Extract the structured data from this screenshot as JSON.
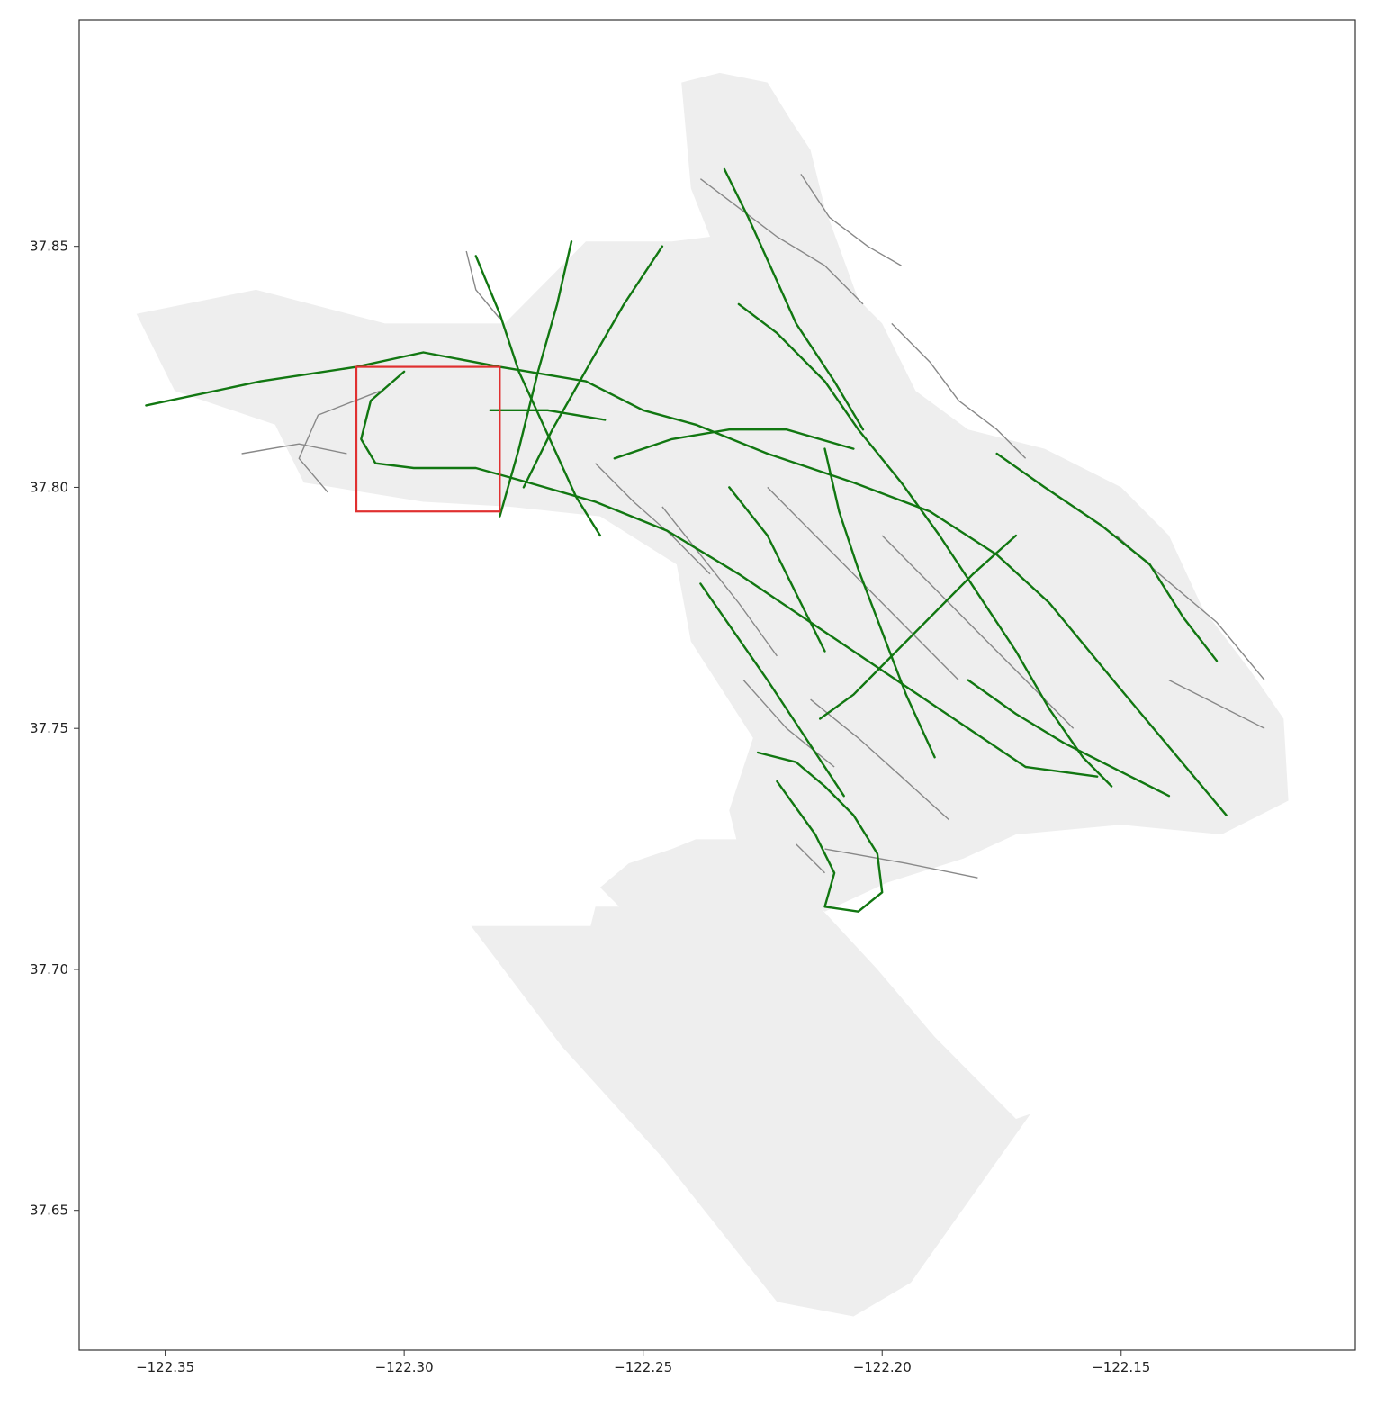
{
  "colors": {
    "background": "#ffffff",
    "land": "#eeeeee",
    "minor_roads": "#888888",
    "major_roads": "#117711",
    "highlight_box": "#e03030",
    "axes": "#333333"
  },
  "chart_data": {
    "type": "map",
    "title": "",
    "xlabel": "",
    "ylabel": "",
    "xlim": [
      -122.368,
      -122.101
    ],
    "ylim": [
      37.621,
      37.897
    ],
    "grid": false,
    "x_ticks": [
      {
        "value": -122.35,
        "label": "−122.35"
      },
      {
        "value": -122.3,
        "label": "−122.30"
      },
      {
        "value": -122.25,
        "label": "−122.25"
      },
      {
        "value": -122.2,
        "label": "−122.20"
      },
      {
        "value": -122.15,
        "label": "−122.15"
      }
    ],
    "y_ticks": [
      {
        "value": 37.65,
        "label": "37.65"
      },
      {
        "value": 37.7,
        "label": "37.70"
      },
      {
        "value": 37.75,
        "label": "37.75"
      },
      {
        "value": 37.8,
        "label": "37.80"
      },
      {
        "value": 37.85,
        "label": "37.85"
      }
    ],
    "highlight_box": {
      "lon": [
        -122.31,
        -122.28
      ],
      "lat": [
        37.795,
        37.825
      ]
    },
    "land_polygon": [
      [
        -122.356,
        37.836
      ],
      [
        -122.331,
        37.841
      ],
      [
        -122.304,
        37.834
      ],
      [
        -122.279,
        37.834
      ],
      [
        -122.262,
        37.851
      ],
      [
        -122.244,
        37.851
      ],
      [
        -122.236,
        37.852
      ],
      [
        -122.24,
        37.862
      ],
      [
        -122.242,
        37.884
      ],
      [
        -122.234,
        37.886
      ],
      [
        -122.224,
        37.884
      ],
      [
        -122.219,
        37.876
      ],
      [
        -122.215,
        37.87
      ],
      [
        -122.212,
        37.858
      ],
      [
        -122.205,
        37.839
      ],
      [
        -122.2,
        37.834
      ],
      [
        -122.193,
        37.82
      ],
      [
        -122.182,
        37.812
      ],
      [
        -122.166,
        37.808
      ],
      [
        -122.15,
        37.8
      ],
      [
        -122.14,
        37.79
      ],
      [
        -122.133,
        37.775
      ],
      [
        -122.123,
        37.762
      ],
      [
        -122.116,
        37.752
      ],
      [
        -122.115,
        37.735
      ],
      [
        -122.129,
        37.728
      ],
      [
        -122.15,
        37.73
      ],
      [
        -122.172,
        37.728
      ],
      [
        -122.183,
        37.723
      ],
      [
        -122.199,
        37.718
      ],
      [
        -122.212,
        37.712
      ],
      [
        -122.222,
        37.72
      ],
      [
        -122.23,
        37.725
      ],
      [
        -122.232,
        37.733
      ],
      [
        -122.227,
        37.748
      ],
      [
        -122.24,
        37.768
      ],
      [
        -122.243,
        37.784
      ],
      [
        -122.259,
        37.794
      ],
      [
        -122.278,
        37.796
      ],
      [
        -122.296,
        37.797
      ],
      [
        -122.321,
        37.801
      ],
      [
        -122.327,
        37.813
      ],
      [
        -122.348,
        37.82
      ]
    ],
    "land_polygon_south": [
      [
        -122.228,
        37.727
      ],
      [
        -122.215,
        37.715
      ],
      [
        -122.201,
        37.7
      ],
      [
        -122.189,
        37.686
      ],
      [
        -122.18,
        37.677
      ],
      [
        -122.172,
        37.669
      ],
      [
        -122.169,
        37.67
      ],
      [
        -122.194,
        37.635
      ],
      [
        -122.206,
        37.628
      ],
      [
        -122.222,
        37.631
      ],
      [
        -122.246,
        37.661
      ],
      [
        -122.267,
        37.684
      ],
      [
        -122.286,
        37.709
      ],
      [
        -122.261,
        37.709
      ],
      [
        -122.26,
        37.713
      ],
      [
        -122.255,
        37.713
      ],
      [
        -122.259,
        37.717
      ],
      [
        -122.253,
        37.722
      ],
      [
        -122.244,
        37.725
      ],
      [
        -122.239,
        37.727
      ]
    ],
    "major_roads": [
      {
        "name": "",
        "points": [
          [
            -122.354,
            37.817
          ],
          [
            -122.33,
            37.822
          ],
          [
            -122.31,
            37.825
          ],
          [
            -122.296,
            37.828
          ],
          [
            -122.28,
            37.825
          ],
          [
            -122.262,
            37.822
          ],
          [
            -122.25,
            37.816
          ],
          [
            -122.239,
            37.813
          ],
          [
            -122.224,
            37.807
          ],
          [
            -122.206,
            37.801
          ],
          [
            -122.19,
            37.795
          ],
          [
            -122.176,
            37.786
          ],
          [
            -122.165,
            37.776
          ],
          [
            -122.15,
            37.758
          ],
          [
            -122.139,
            37.745
          ],
          [
            -122.128,
            37.732
          ]
        ]
      },
      {
        "name": "",
        "points": [
          [
            -122.3,
            37.824
          ],
          [
            -122.307,
            37.818
          ],
          [
            -122.309,
            37.81
          ],
          [
            -122.306,
            37.805
          ],
          [
            -122.298,
            37.804
          ],
          [
            -122.285,
            37.804
          ],
          [
            -122.274,
            37.801
          ],
          [
            -122.26,
            37.797
          ],
          [
            -122.245,
            37.791
          ],
          [
            -122.23,
            37.782
          ],
          [
            -122.215,
            37.772
          ],
          [
            -122.2,
            37.762
          ],
          [
            -122.185,
            37.752
          ],
          [
            -122.17,
            37.742
          ],
          [
            -122.155,
            37.74
          ]
        ]
      },
      {
        "name": "",
        "points": [
          [
            -122.23,
            37.838
          ],
          [
            -122.222,
            37.832
          ],
          [
            -122.212,
            37.822
          ],
          [
            -122.205,
            37.812
          ],
          [
            -122.196,
            37.801
          ],
          [
            -122.188,
            37.79
          ],
          [
            -122.18,
            37.778
          ],
          [
            -122.172,
            37.766
          ],
          [
            -122.165,
            37.754
          ],
          [
            -122.158,
            37.744
          ],
          [
            -122.152,
            37.738
          ]
        ]
      },
      {
        "name": "",
        "points": [
          [
            -122.226,
            37.745
          ],
          [
            -122.218,
            37.743
          ],
          [
            -122.212,
            37.738
          ],
          [
            -122.206,
            37.732
          ],
          [
            -122.201,
            37.724
          ],
          [
            -122.2,
            37.716
          ],
          [
            -122.205,
            37.712
          ],
          [
            -122.212,
            37.713
          ],
          [
            -122.21,
            37.72
          ],
          [
            -122.214,
            37.728
          ],
          [
            -122.222,
            37.739
          ]
        ]
      },
      {
        "name": "",
        "points": [
          [
            -122.233,
            37.866
          ],
          [
            -122.228,
            37.856
          ],
          [
            -122.223,
            37.845
          ],
          [
            -122.218,
            37.834
          ],
          [
            -122.21,
            37.822
          ],
          [
            -122.204,
            37.812
          ]
        ]
      },
      {
        "name": "",
        "points": [
          [
            -122.285,
            37.848
          ],
          [
            -122.28,
            37.836
          ],
          [
            -122.276,
            37.824
          ],
          [
            -122.27,
            37.811
          ],
          [
            -122.264,
            37.798
          ],
          [
            -122.259,
            37.79
          ]
        ]
      },
      {
        "name": "",
        "points": [
          [
            -122.265,
            37.851
          ],
          [
            -122.268,
            37.838
          ],
          [
            -122.272,
            37.824
          ],
          [
            -122.276,
            37.808
          ],
          [
            -122.28,
            37.794
          ]
        ]
      },
      {
        "name": "",
        "points": [
          [
            -122.246,
            37.85
          ],
          [
            -122.254,
            37.838
          ],
          [
            -122.261,
            37.826
          ],
          [
            -122.269,
            37.812
          ],
          [
            -122.275,
            37.8
          ]
        ]
      },
      {
        "name": "",
        "points": [
          [
            -122.238,
            37.78
          ],
          [
            -122.231,
            37.77
          ],
          [
            -122.224,
            37.76
          ],
          [
            -122.216,
            37.748
          ],
          [
            -122.208,
            37.736
          ]
        ]
      },
      {
        "name": "",
        "points": [
          [
            -122.256,
            37.806
          ],
          [
            -122.244,
            37.81
          ],
          [
            -122.232,
            37.812
          ],
          [
            -122.22,
            37.812
          ],
          [
            -122.206,
            37.808
          ]
        ]
      },
      {
        "name": "",
        "points": [
          [
            -122.212,
            37.808
          ],
          [
            -122.209,
            37.795
          ],
          [
            -122.205,
            37.783
          ],
          [
            -122.2,
            37.77
          ],
          [
            -122.195,
            37.757
          ],
          [
            -122.189,
            37.744
          ]
        ]
      },
      {
        "name": "",
        "points": [
          [
            -122.172,
            37.79
          ],
          [
            -122.181,
            37.782
          ],
          [
            -122.19,
            37.773
          ],
          [
            -122.198,
            37.765
          ],
          [
            -122.206,
            37.757
          ],
          [
            -122.213,
            37.752
          ]
        ]
      },
      {
        "name": "",
        "points": [
          [
            -122.182,
            37.76
          ],
          [
            -122.172,
            37.753
          ],
          [
            -122.162,
            37.747
          ],
          [
            -122.15,
            37.741
          ],
          [
            -122.14,
            37.736
          ]
        ]
      },
      {
        "name": "",
        "points": [
          [
            -122.176,
            37.807
          ],
          [
            -122.166,
            37.8
          ],
          [
            -122.154,
            37.792
          ],
          [
            -122.144,
            37.784
          ],
          [
            -122.137,
            37.773
          ],
          [
            -122.13,
            37.764
          ]
        ]
      },
      {
        "name": "",
        "points": [
          [
            -122.282,
            37.816
          ],
          [
            -122.27,
            37.816
          ],
          [
            -122.258,
            37.814
          ]
        ]
      },
      {
        "name": "",
        "points": [
          [
            -122.232,
            37.8
          ],
          [
            -122.224,
            37.79
          ],
          [
            -122.218,
            37.778
          ],
          [
            -122.212,
            37.766
          ]
        ]
      }
    ],
    "minor_roads": [
      {
        "name": "",
        "points": [
          [
            -122.334,
            37.807
          ],
          [
            -122.322,
            37.809
          ],
          [
            -122.312,
            37.807
          ]
        ]
      },
      {
        "name": "",
        "points": [
          [
            -122.305,
            37.82
          ],
          [
            -122.318,
            37.815
          ],
          [
            -122.322,
            37.806
          ],
          [
            -122.316,
            37.799
          ]
        ]
      },
      {
        "name": "",
        "points": [
          [
            -122.287,
            37.849
          ],
          [
            -122.285,
            37.841
          ],
          [
            -122.28,
            37.835
          ]
        ]
      },
      {
        "name": "",
        "points": [
          [
            -122.238,
            37.864
          ],
          [
            -122.23,
            37.858
          ],
          [
            -122.222,
            37.852
          ],
          [
            -122.212,
            37.846
          ],
          [
            -122.204,
            37.838
          ]
        ]
      },
      {
        "name": "",
        "points": [
          [
            -122.217,
            37.865
          ],
          [
            -122.211,
            37.856
          ],
          [
            -122.203,
            37.85
          ],
          [
            -122.196,
            37.846
          ]
        ]
      },
      {
        "name": "",
        "points": [
          [
            -122.198,
            37.834
          ],
          [
            -122.19,
            37.826
          ],
          [
            -122.184,
            37.818
          ],
          [
            -122.176,
            37.812
          ],
          [
            -122.17,
            37.806
          ]
        ]
      },
      {
        "name": "",
        "points": [
          [
            -122.151,
            37.79
          ],
          [
            -122.142,
            37.782
          ],
          [
            -122.13,
            37.772
          ],
          [
            -122.12,
            37.76
          ]
        ]
      },
      {
        "name": "",
        "points": [
          [
            -122.212,
            37.725
          ],
          [
            -122.195,
            37.722
          ],
          [
            -122.18,
            37.719
          ]
        ]
      },
      {
        "name": "",
        "points": [
          [
            -122.246,
            37.796
          ],
          [
            -122.238,
            37.786
          ],
          [
            -122.23,
            37.776
          ],
          [
            -122.222,
            37.765
          ]
        ]
      },
      {
        "name": "",
        "points": [
          [
            -122.26,
            37.805
          ],
          [
            -122.252,
            37.797
          ],
          [
            -122.244,
            37.79
          ],
          [
            -122.236,
            37.782
          ]
        ]
      },
      {
        "name": "",
        "points": [
          [
            -122.224,
            37.8
          ],
          [
            -122.214,
            37.79
          ],
          [
            -122.204,
            37.78
          ],
          [
            -122.194,
            37.77
          ],
          [
            -122.184,
            37.76
          ]
        ]
      },
      {
        "name": "",
        "points": [
          [
            -122.2,
            37.79
          ],
          [
            -122.19,
            37.78
          ],
          [
            -122.18,
            37.77
          ],
          [
            -122.17,
            37.76
          ],
          [
            -122.16,
            37.75
          ]
        ]
      },
      {
        "name": "",
        "points": [
          [
            -122.215,
            37.756
          ],
          [
            -122.205,
            37.748
          ],
          [
            -122.196,
            37.74
          ],
          [
            -122.186,
            37.731
          ]
        ]
      },
      {
        "name": "",
        "points": [
          [
            -122.229,
            37.76
          ],
          [
            -122.22,
            37.75
          ],
          [
            -122.21,
            37.742
          ]
        ]
      },
      {
        "name": "",
        "points": [
          [
            -122.14,
            37.76
          ],
          [
            -122.13,
            37.755
          ],
          [
            -122.12,
            37.75
          ]
        ]
      },
      {
        "name": "",
        "points": [
          [
            -122.218,
            37.726
          ],
          [
            -122.212,
            37.72
          ]
        ]
      }
    ]
  }
}
